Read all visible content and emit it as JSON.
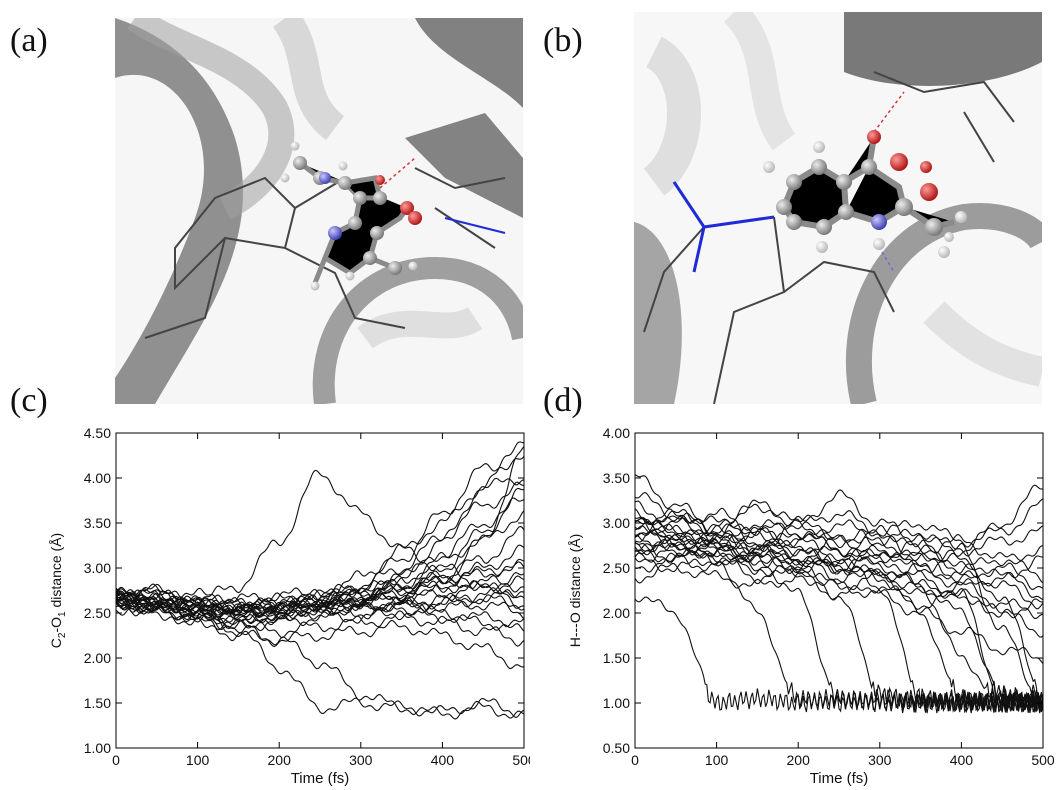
{
  "panels": {
    "a": "(a)",
    "b": "(b)",
    "c": "(c)",
    "d": "(d)"
  },
  "colors": {
    "ribbon": "#8c8c8c",
    "ribbon_light": "#d6d6d6",
    "carbon": "#9a9a9a",
    "hydrogen": "#d9d9d9",
    "oxygen": "#d23a3a",
    "nitrogen": "#6a6ad6",
    "bond_blue": "#1f2bd6",
    "trace": "#111111"
  },
  "chart_data": [
    {
      "type": "line",
      "panel": "(c)",
      "xlabel": "Time (fs)",
      "ylabel_parts": [
        "C",
        "2",
        "-O",
        "1",
        " distance (Å)"
      ],
      "xlim": [
        0,
        500
      ],
      "ylim": [
        1.0,
        4.5
      ],
      "xticks": [
        0,
        100,
        200,
        300,
        400,
        500
      ],
      "xtick_labels": [
        "0",
        "100",
        "200",
        "300",
        "400",
        "500"
      ],
      "yticks": [
        1.0,
        1.5,
        2.0,
        2.5,
        3.0,
        3.5,
        4.0,
        4.5
      ],
      "ytick_labels": [
        "1.00",
        "1.50",
        "2.00",
        "2.50",
        "3.00",
        "3.50",
        "4.00",
        "4.50"
      ],
      "x": [
        0,
        50,
        100,
        150,
        200,
        250,
        300,
        350,
        400,
        450,
        500
      ],
      "series": [
        {
          "values": [
            2.68,
            2.75,
            2.62,
            2.55,
            2.6,
            2.66,
            2.7,
            2.78,
            2.9,
            3.3,
            4.3
          ]
        },
        {
          "values": [
            2.7,
            2.6,
            2.55,
            2.5,
            2.55,
            2.6,
            2.7,
            2.9,
            3.3,
            3.9,
            4.45
          ]
        },
        {
          "values": [
            2.6,
            2.65,
            2.5,
            2.45,
            2.5,
            2.6,
            2.8,
            3.1,
            3.6,
            4.1,
            4.2
          ]
        },
        {
          "values": [
            2.72,
            2.6,
            2.65,
            2.6,
            2.6,
            2.7,
            2.9,
            3.2,
            3.5,
            3.9,
            4.0
          ]
        },
        {
          "values": [
            2.65,
            2.7,
            2.6,
            2.5,
            2.45,
            2.55,
            2.65,
            2.8,
            3.0,
            3.4,
            3.85
          ]
        },
        {
          "values": [
            2.7,
            2.55,
            2.6,
            2.55,
            2.5,
            2.6,
            2.7,
            2.85,
            3.1,
            3.3,
            3.6
          ]
        },
        {
          "values": [
            2.6,
            2.6,
            2.5,
            2.4,
            2.5,
            2.55,
            2.6,
            2.7,
            2.9,
            3.1,
            3.4
          ]
        },
        {
          "values": [
            2.75,
            2.7,
            2.6,
            2.55,
            2.6,
            2.6,
            2.65,
            2.75,
            2.85,
            3.0,
            3.2
          ]
        },
        {
          "values": [
            2.66,
            2.6,
            2.62,
            2.6,
            2.55,
            2.6,
            2.62,
            2.7,
            2.8,
            2.95,
            3.0
          ]
        },
        {
          "values": [
            2.7,
            2.62,
            2.5,
            2.5,
            2.55,
            2.6,
            2.6,
            2.65,
            2.7,
            2.8,
            2.9
          ]
        },
        {
          "values": [
            2.6,
            2.55,
            2.55,
            2.6,
            2.5,
            2.55,
            2.6,
            2.6,
            2.65,
            2.7,
            2.75
          ]
        },
        {
          "values": [
            2.68,
            2.6,
            2.5,
            2.45,
            2.5,
            2.55,
            2.55,
            2.6,
            2.62,
            2.68,
            2.7
          ]
        },
        {
          "values": [
            2.62,
            2.7,
            2.6,
            2.55,
            2.6,
            2.62,
            2.6,
            2.58,
            2.6,
            2.65,
            2.6
          ]
        },
        {
          "values": [
            2.7,
            2.65,
            2.55,
            2.5,
            2.48,
            2.52,
            2.55,
            2.6,
            2.55,
            2.6,
            2.5
          ]
        },
        {
          "values": [
            2.6,
            2.55,
            2.45,
            2.4,
            2.45,
            2.5,
            2.5,
            2.55,
            2.5,
            2.45,
            2.4
          ]
        },
        {
          "values": [
            2.55,
            2.5,
            2.4,
            2.35,
            2.4,
            2.45,
            2.45,
            2.5,
            2.45,
            2.4,
            2.3
          ]
        },
        {
          "values": [
            2.65,
            2.55,
            2.5,
            2.55,
            2.6,
            2.65,
            2.7,
            2.75,
            2.8,
            2.85,
            2.8
          ]
        },
        {
          "values": [
            2.7,
            2.75,
            2.7,
            2.65,
            2.7,
            2.72,
            2.78,
            2.82,
            2.9,
            2.95,
            3.05
          ]
        },
        {
          "values": [
            2.62,
            2.58,
            2.55,
            2.5,
            2.55,
            2.58,
            2.65,
            2.72,
            2.8,
            2.78,
            2.85
          ]
        },
        {
          "values": [
            2.6,
            2.55,
            2.45,
            2.35,
            2.3,
            2.35,
            2.4,
            2.45,
            2.4,
            2.3,
            2.2
          ]
        },
        {
          "values": [
            2.58,
            2.5,
            2.4,
            2.25,
            2.2,
            2.25,
            2.3,
            2.35,
            2.25,
            2.1,
            1.9
          ]
        },
        {
          "values": [
            2.7,
            2.7,
            2.65,
            2.8,
            3.3,
            4.05,
            3.6,
            3.2,
            3.0,
            2.8,
            2.6
          ]
        },
        {
          "values": [
            2.65,
            2.6,
            2.5,
            2.3,
            1.9,
            1.45,
            1.5,
            1.45,
            1.4,
            1.5,
            1.4
          ]
        },
        {
          "values": [
            2.6,
            2.55,
            2.45,
            2.35,
            2.2,
            1.95,
            1.6,
            1.45,
            1.38,
            1.45,
            1.35
          ]
        },
        {
          "values": [
            2.68,
            2.62,
            2.55,
            2.5,
            2.55,
            2.65,
            2.8,
            3.0,
            3.35,
            3.7,
            3.9
          ]
        },
        {
          "values": [
            2.72,
            2.65,
            2.6,
            2.6,
            2.65,
            2.7,
            2.75,
            2.9,
            3.15,
            3.5,
            3.75
          ]
        }
      ]
    },
    {
      "type": "line",
      "panel": "(d)",
      "xlabel": "Time (fs)",
      "ylabel": "H---O distance (Å)",
      "xlim": [
        0,
        500
      ],
      "ylim": [
        0.5,
        4.0
      ],
      "xticks": [
        0,
        100,
        200,
        300,
        400,
        500
      ],
      "xtick_labels": [
        "0",
        "100",
        "200",
        "300",
        "400",
        "500"
      ],
      "yticks": [
        0.5,
        1.0,
        1.5,
        2.0,
        2.5,
        3.0,
        3.5,
        4.0
      ],
      "ytick_labels": [
        "0.50",
        "1.00",
        "1.50",
        "2.00",
        "2.50",
        "3.00",
        "3.50",
        "4.00"
      ],
      "x": [
        0,
        50,
        100,
        150,
        200,
        250,
        300,
        350,
        400,
        450,
        500
      ],
      "series": [
        {
          "values": [
            2.2,
            2.0,
            1.0,
            1.05,
            1.0,
            1.05,
            1.0,
            1.0,
            1.05,
            1.0,
            1.0
          ]
        },
        {
          "values": [
            2.9,
            2.8,
            2.6,
            2.0,
            1.05,
            1.0,
            1.05,
            1.0,
            1.0,
            1.0,
            1.0
          ]
        },
        {
          "values": [
            3.0,
            2.9,
            2.7,
            2.6,
            2.2,
            1.05,
            1.0,
            1.05,
            1.0,
            1.0,
            1.05
          ]
        },
        {
          "values": [
            2.8,
            2.7,
            2.75,
            2.6,
            2.5,
            2.2,
            1.1,
            1.0,
            1.0,
            1.05,
            1.0
          ]
        },
        {
          "values": [
            2.7,
            2.8,
            2.6,
            2.7,
            2.5,
            2.6,
            2.3,
            1.05,
            1.0,
            1.0,
            1.0
          ]
        },
        {
          "values": [
            3.1,
            2.9,
            2.8,
            2.9,
            2.7,
            2.5,
            2.4,
            2.0,
            1.05,
            1.0,
            1.0
          ]
        },
        {
          "values": [
            2.6,
            2.7,
            2.8,
            2.6,
            2.7,
            2.5,
            2.6,
            2.3,
            1.5,
            1.0,
            1.05
          ]
        },
        {
          "values": [
            3.0,
            2.8,
            3.0,
            2.8,
            2.6,
            2.7,
            2.5,
            2.4,
            2.2,
            1.05,
            1.0
          ]
        },
        {
          "values": [
            2.5,
            2.6,
            2.5,
            2.7,
            2.6,
            2.4,
            2.5,
            2.3,
            2.0,
            1.1,
            1.0
          ]
        },
        {
          "values": [
            3.3,
            3.1,
            2.9,
            3.2,
            3.0,
            2.8,
            2.9,
            2.6,
            2.4,
            2.2,
            1.05
          ]
        },
        {
          "values": [
            2.9,
            3.0,
            2.8,
            2.7,
            2.9,
            2.7,
            2.6,
            2.8,
            2.5,
            2.3,
            2.1
          ]
        },
        {
          "values": [
            2.7,
            2.6,
            2.7,
            2.5,
            2.6,
            2.5,
            2.7,
            2.5,
            2.4,
            2.5,
            2.3
          ]
        },
        {
          "values": [
            3.2,
            3.0,
            3.1,
            2.9,
            3.0,
            2.8,
            2.9,
            2.7,
            2.8,
            2.6,
            2.7
          ]
        },
        {
          "values": [
            2.8,
            2.9,
            2.8,
            2.9,
            2.7,
            2.8,
            2.6,
            2.7,
            2.5,
            2.6,
            2.4
          ]
        },
        {
          "values": [
            2.6,
            2.5,
            2.6,
            2.4,
            2.5,
            2.3,
            2.4,
            2.2,
            2.3,
            2.1,
            2.0
          ]
        },
        {
          "values": [
            3.0,
            2.8,
            2.6,
            2.5,
            2.4,
            2.3,
            2.2,
            2.0,
            1.8,
            1.6,
            1.5
          ]
        },
        {
          "values": [
            2.9,
            3.1,
            3.0,
            3.2,
            3.0,
            3.1,
            2.9,
            3.0,
            2.8,
            2.9,
            3.2
          ]
        },
        {
          "values": [
            2.7,
            2.8,
            2.9,
            2.7,
            2.8,
            2.6,
            2.7,
            2.5,
            2.6,
            2.4,
            2.6
          ]
        },
        {
          "values": [
            3.5,
            3.2,
            2.9,
            2.7,
            2.6,
            2.5,
            2.4,
            2.3,
            2.2,
            2.0,
            1.8
          ]
        },
        {
          "values": [
            2.4,
            2.5,
            2.4,
            2.3,
            2.4,
            2.2,
            2.3,
            2.1,
            2.2,
            2.0,
            2.1
          ]
        },
        {
          "values": [
            3.1,
            2.9,
            2.7,
            2.9,
            2.8,
            3.0,
            2.8,
            2.9,
            2.7,
            2.8,
            2.9
          ]
        },
        {
          "values": [
            2.8,
            2.6,
            2.7,
            2.6,
            2.5,
            2.6,
            2.4,
            2.5,
            2.3,
            2.4,
            2.2
          ]
        },
        {
          "values": [
            3.0,
            3.1,
            2.9,
            3.0,
            2.9,
            2.7,
            2.8,
            2.6,
            2.7,
            1.8,
            1.0
          ]
        },
        {
          "values": [
            2.75,
            2.7,
            2.8,
            2.7,
            3.0,
            3.3,
            3.0,
            2.8,
            2.7,
            3.0,
            3.4
          ]
        }
      ]
    }
  ]
}
